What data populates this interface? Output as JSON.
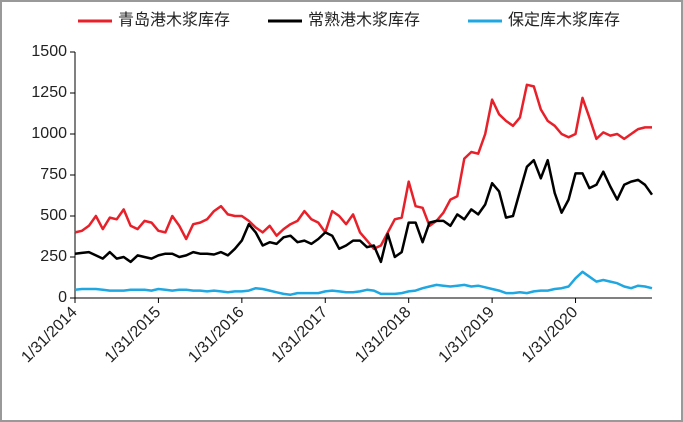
{
  "chart_data": {
    "type": "line",
    "categories": [
      "1/31/2014",
      null,
      null,
      null,
      null,
      null,
      null,
      null,
      null,
      null,
      null,
      null,
      "1/31/2015",
      null,
      null,
      null,
      null,
      null,
      null,
      null,
      null,
      null,
      null,
      null,
      "1/31/2016",
      null,
      null,
      null,
      null,
      null,
      null,
      null,
      null,
      null,
      null,
      null,
      "1/31/2017",
      null,
      null,
      null,
      null,
      null,
      null,
      null,
      null,
      null,
      null,
      null,
      "1/31/2018",
      null,
      null,
      null,
      null,
      null,
      null,
      null,
      null,
      null,
      null,
      null,
      "1/31/2019",
      null,
      null,
      null,
      null,
      null,
      null,
      null,
      null,
      null,
      null,
      null,
      "1/31/2020",
      null,
      null,
      null,
      null,
      null,
      null,
      null,
      null,
      null,
      null,
      null
    ],
    "series": [
      {
        "name": "青岛港木浆库存",
        "color": "#e8202a",
        "values": [
          400,
          410,
          440,
          500,
          420,
          490,
          480,
          540,
          440,
          420,
          470,
          460,
          410,
          400,
          500,
          440,
          360,
          450,
          460,
          480,
          530,
          560,
          510,
          500,
          500,
          470,
          430,
          400,
          440,
          380,
          420,
          450,
          470,
          530,
          480,
          460,
          400,
          530,
          500,
          450,
          510,
          400,
          350,
          300,
          320,
          400,
          480,
          490,
          710,
          560,
          550,
          440,
          470,
          520,
          600,
          620,
          850,
          890,
          880,
          1000,
          1210,
          1120,
          1080,
          1050,
          1100,
          1300,
          1290,
          1150,
          1080,
          1050,
          1000,
          980,
          1000,
          1220,
          1100,
          970,
          1010,
          990,
          1000,
          970,
          1000,
          1030,
          1040,
          1040
        ]
      },
      {
        "name": "常熟港木浆库存",
        "color": "#000000",
        "values": [
          270,
          275,
          280,
          260,
          240,
          280,
          240,
          250,
          220,
          260,
          250,
          240,
          260,
          270,
          270,
          250,
          260,
          280,
          270,
          270,
          265,
          280,
          260,
          300,
          350,
          450,
          400,
          320,
          340,
          330,
          370,
          380,
          340,
          350,
          330,
          360,
          400,
          380,
          300,
          320,
          350,
          350,
          310,
          320,
          220,
          390,
          250,
          280,
          460,
          460,
          340,
          460,
          470,
          470,
          440,
          510,
          480,
          540,
          510,
          570,
          700,
          650,
          490,
          500,
          650,
          800,
          840,
          730,
          840,
          640,
          520,
          600,
          760,
          760,
          670,
          690,
          770,
          680,
          600,
          690,
          710,
          720,
          690,
          630
        ]
      },
      {
        "name": "保定库木浆库存",
        "color": "#1fa7e1",
        "values": [
          50,
          55,
          55,
          55,
          50,
          45,
          45,
          45,
          50,
          50,
          50,
          45,
          55,
          50,
          45,
          50,
          50,
          45,
          45,
          40,
          45,
          40,
          35,
          40,
          40,
          45,
          60,
          55,
          45,
          35,
          25,
          20,
          30,
          30,
          30,
          30,
          40,
          45,
          40,
          35,
          35,
          40,
          50,
          45,
          25,
          25,
          25,
          30,
          40,
          45,
          60,
          70,
          80,
          75,
          70,
          75,
          80,
          70,
          75,
          65,
          55,
          45,
          30,
          30,
          35,
          30,
          40,
          45,
          45,
          55,
          60,
          70,
          120,
          160,
          130,
          100,
          110,
          100,
          90,
          70,
          60,
          75,
          70,
          60
        ]
      }
    ],
    "ylim": [
      0,
      1500
    ],
    "yticks": [
      0,
      250,
      500,
      750,
      1000,
      1250,
      1500
    ]
  }
}
